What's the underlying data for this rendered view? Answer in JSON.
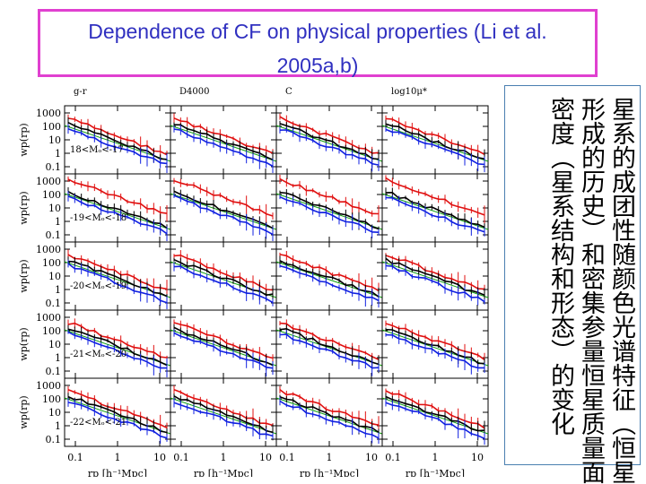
{
  "title": {
    "line1": "Dependence of CF on physical properties (Li et al.",
    "line2": "2005a,b)"
  },
  "figure": {
    "column_labels": [
      "g-r",
      "D4000",
      "C",
      "log10μ*"
    ],
    "row_labels": [
      "18<Mₒ<-17",
      "-19<Mₒ<-18",
      "-20<Mₒ<-19",
      "-21<Mₒ<-20",
      "-22<Mₒ<-21"
    ],
    "y_axis_label": "wp(rp)",
    "y_ticks": [
      "1000",
      "100",
      "10",
      "1",
      "0.1"
    ],
    "x_ticks": [
      "0.1",
      "1",
      "10"
    ],
    "x_axis_label": "rp [h⁻¹Mpc]"
  },
  "sidebar": {
    "columns": [
      "星系的成团性随颜色光谱特征（恒星",
      "形成的历史）和密集参量恒星质量面",
      "密度（星系结构和形态）的变化"
    ]
  },
  "colors": {
    "title_border": "#e040d0",
    "title_text": "#3030c0",
    "red": "#e01010",
    "blue": "#1020e0",
    "green": "#10a010",
    "black": "#000000"
  }
}
